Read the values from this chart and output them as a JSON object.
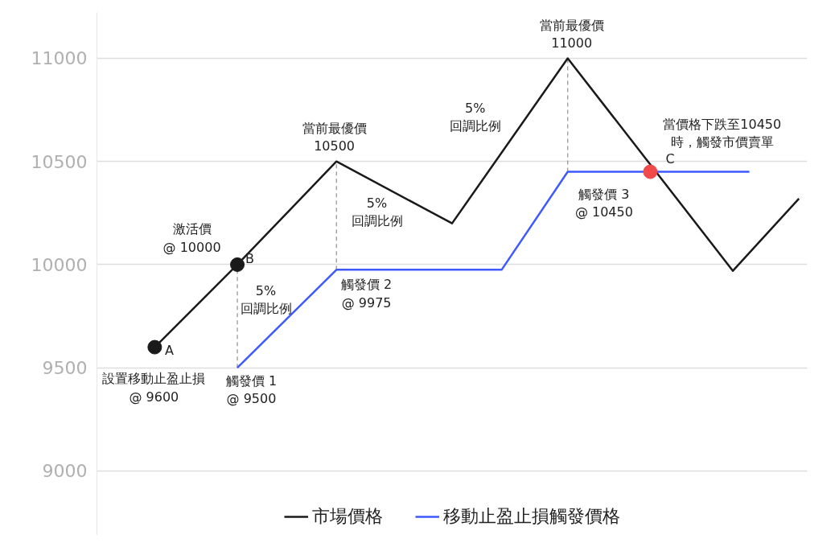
{
  "chart_data": {
    "type": "line",
    "categories": [
      null,
      null,
      null,
      null,
      null,
      null,
      null,
      null,
      null,
      null,
      null,
      null,
      null,
      null,
      null,
      null,
      null,
      null,
      null,
      null,
      null,
      null,
      null,
      null,
      null,
      null,
      null,
      null,
      null,
      null,
      null,
      null,
      null,
      null,
      null,
      null,
      null,
      null,
      null,
      null,
      null,
      null,
      null
    ],
    "ylim": [
      8688,
      11222
    ],
    "yticks": [
      9000,
      9500,
      10000,
      10500,
      11000
    ],
    "tick_labels": "y",
    "grid": "y",
    "legend": "bottom",
    "marker": "none",
    "series": [
      {
        "name": "市場價格",
        "color": "#1a1a1a",
        "values": [
          null,
          null,
          null,
          9600,
          null,
          null,
          null,
          null,
          10000,
          null,
          null,
          null,
          null,
          null,
          10500,
          null,
          null,
          null,
          null,
          null,
          null,
          10200,
          null,
          null,
          null,
          null,
          null,
          null,
          11000,
          null,
          null,
          null,
          null,
          null,
          null,
          null,
          null,
          null,
          9970,
          null,
          null,
          null,
          10320
        ],
        "errors": [
          null,
          null,
          null,
          null,
          null,
          null,
          null,
          null,
          [
            9500,
            10000
          ],
          null,
          null,
          null,
          null,
          null,
          [
            9975,
            10500
          ],
          null,
          null,
          null,
          null,
          null,
          null,
          null,
          null,
          null,
          null,
          null,
          null,
          null,
          [
            10450,
            11000
          ],
          null,
          null,
          null,
          null,
          null,
          null,
          null,
          null,
          null,
          null,
          null,
          null,
          null,
          null
        ]
      },
      {
        "name": "移動止盈止損觸發價格",
        "color": "#3d5afe",
        "values": [
          null,
          null,
          null,
          null,
          null,
          null,
          null,
          null,
          9500,
          null,
          null,
          null,
          null,
          null,
          9975,
          null,
          null,
          null,
          null,
          null,
          null,
          null,
          null,
          null,
          9975,
          null,
          null,
          null,
          10450,
          null,
          null,
          null,
          null,
          null,
          null,
          null,
          null,
          null,
          null,
          10450,
          null,
          null,
          null
        ]
      },
      {
        "type": "scatter",
        "color": "#1a1a1a",
        "marker": "circle",
        "values": [
          null,
          null,
          null,
          9600,
          null,
          null,
          null,
          null,
          10000,
          null,
          null,
          null,
          null,
          null,
          null,
          null,
          null,
          null,
          null,
          null,
          null,
          null,
          null,
          null,
          null,
          null,
          null,
          null,
          null,
          null,
          null,
          null,
          null,
          null,
          null,
          null,
          null,
          null,
          null,
          null,
          null,
          null,
          null
        ]
      },
      {
        "type": "scatter",
        "color": "#f04a4a",
        "marker": "circle",
        "values": [
          null,
          null,
          null,
          null,
          null,
          null,
          null,
          null,
          null,
          null,
          null,
          null,
          null,
          null,
          null,
          null,
          null,
          null,
          null,
          null,
          null,
          null,
          null,
          null,
          null,
          null,
          null,
          null,
          null,
          null,
          null,
          null,
          null,
          10450,
          null,
          null,
          null,
          null,
          null,
          null,
          null,
          null,
          null
        ]
      }
    ],
    "annotations": [
      "設置移動止盈止損\n@ 9600",
      "A",
      "激活價\n@ 10000",
      "B",
      "5%\n回調比例",
      "觸發價 1\n@ 9500",
      "當前最優價\n10500",
      "5%\n回調比例",
      "觸發價 2\n@ 9975",
      "當前最優價\n11000",
      "5%\n回調比例",
      "觸發價 3\n@ 10450",
      "C",
      "當價格下跌至10450\n時，觸發市價賣單"
    ]
  }
}
